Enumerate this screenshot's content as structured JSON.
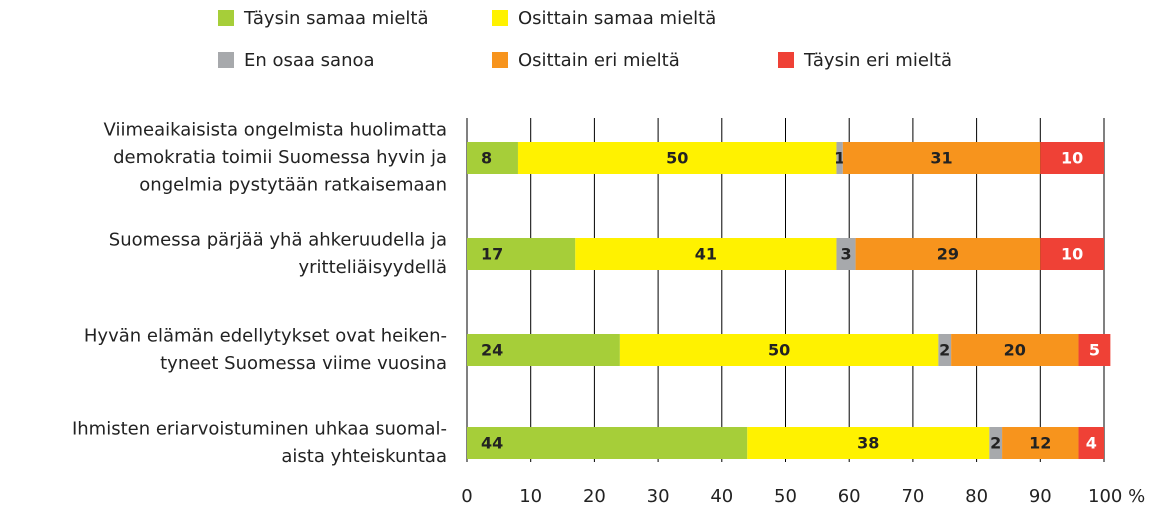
{
  "chart_data": {
    "type": "stacked-bar-horizontal",
    "categories": [
      [
        "Viimeaikaisista ongelmista huolimatta",
        "demokratia toimii Suomessa hyvin ja",
        "ongelmia pystytään ratkaisemaan"
      ],
      [
        "Suomessa pärjää yhä ahkeruudella ja",
        "yritteliäisyydellä"
      ],
      [
        "Hyvän elämän edellytykset ovat heiken-",
        "tyneet Suomessa viime vuosina"
      ],
      [
        "Ihmisten eriarvoistuminen uhkaa suomal-",
        "aista yhteiskuntaa"
      ]
    ],
    "series": [
      {
        "name": "Täysin samaa mieltä",
        "color": "#a6ce39",
        "values": [
          8,
          17,
          24,
          44
        ]
      },
      {
        "name": "Osittain samaa mieltä",
        "color": "#fff200",
        "values": [
          50,
          41,
          50,
          38
        ]
      },
      {
        "name": "En osaa sanoa",
        "color": "#a7a9ac",
        "values": [
          1,
          3,
          2,
          2
        ]
      },
      {
        "name": "Osittain eri mieltä",
        "color": "#f7941d",
        "values": [
          31,
          29,
          20,
          12
        ]
      },
      {
        "name": "Täysin eri mieltä",
        "color": "#ef4136",
        "values": [
          10,
          10,
          5,
          4
        ]
      }
    ],
    "xlim": [
      0,
      100
    ],
    "xticks": [
      0,
      10,
      20,
      30,
      40,
      50,
      60,
      70,
      80,
      90,
      {
        "value": 100,
        "label": "100 %"
      }
    ],
    "grid": true
  }
}
